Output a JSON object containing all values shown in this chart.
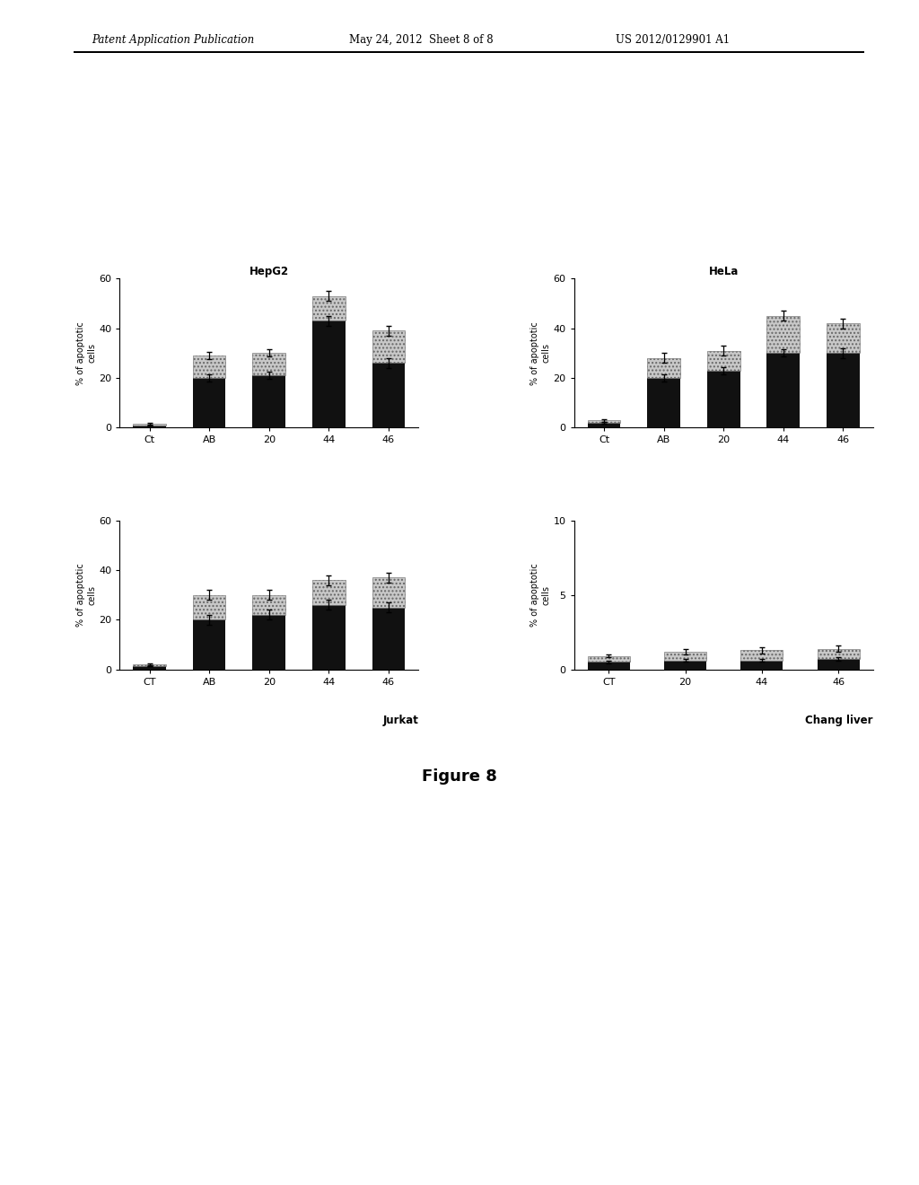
{
  "header_left": "Patent Application Publication",
  "header_mid": "May 24, 2012  Sheet 8 of 8",
  "header_right": "US 2012/0129901 A1",
  "figure_caption": "Figure 8",
  "plots": [
    {
      "title": "HepG2",
      "ylabel": "% of apoptotic\ncells",
      "ylim": [
        0,
        60
      ],
      "yticks": [
        0,
        20,
        40,
        60
      ],
      "categories": [
        "Ct",
        "AB",
        "20",
        "44",
        "46"
      ],
      "black_values": [
        1.0,
        20.0,
        21.0,
        43.0,
        26.0
      ],
      "gray_values": [
        0.5,
        9.0,
        9.0,
        10.0,
        13.0
      ],
      "black_errors": [
        0.2,
        1.5,
        1.5,
        2.0,
        2.0
      ],
      "gray_errors": [
        0.5,
        1.5,
        1.5,
        2.0,
        2.0
      ],
      "label_below": ""
    },
    {
      "title": "HeLa",
      "ylabel": "% of apoptotic\ncells",
      "ylim": [
        0,
        60
      ],
      "yticks": [
        0,
        20,
        40,
        60
      ],
      "categories": [
        "Ct",
        "AB",
        "20",
        "44",
        "46"
      ],
      "black_values": [
        2.0,
        20.0,
        23.0,
        30.0,
        30.0
      ],
      "gray_values": [
        1.0,
        8.0,
        8.0,
        15.0,
        12.0
      ],
      "black_errors": [
        0.3,
        1.5,
        1.5,
        1.5,
        2.0
      ],
      "gray_errors": [
        0.5,
        2.0,
        2.0,
        2.0,
        2.0
      ],
      "label_below": "Chang liver"
    },
    {
      "title": "",
      "ylabel": "% of apoptotic\ncells",
      "ylim": [
        0,
        60
      ],
      "yticks": [
        0,
        20,
        40,
        60
      ],
      "categories": [
        "CT",
        "AB",
        "20",
        "44",
        "46"
      ],
      "black_values": [
        1.5,
        20.0,
        22.0,
        26.0,
        25.0
      ],
      "gray_values": [
        0.5,
        10.0,
        8.0,
        10.0,
        12.0
      ],
      "black_errors": [
        0.3,
        2.0,
        2.0,
        2.0,
        2.0
      ],
      "gray_errors": [
        0.5,
        2.0,
        2.0,
        2.0,
        2.0
      ],
      "label_below": "Jurkat"
    },
    {
      "title": "",
      "ylabel": "% of apoptotic\ncells",
      "ylim": [
        0,
        10
      ],
      "yticks": [
        0,
        5,
        10
      ],
      "categories": [
        "CT",
        "20",
        "44",
        "46"
      ],
      "black_values": [
        0.5,
        0.6,
        0.6,
        0.7
      ],
      "gray_values": [
        0.4,
        0.6,
        0.7,
        0.7
      ],
      "black_errors": [
        0.1,
        0.1,
        0.1,
        0.1
      ],
      "gray_errors": [
        0.1,
        0.2,
        0.2,
        0.2
      ],
      "label_below": "Chang liver"
    }
  ]
}
